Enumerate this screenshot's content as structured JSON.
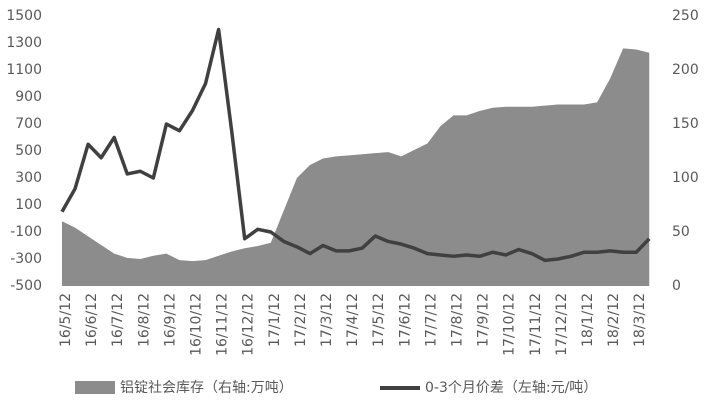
{
  "chart_data": {
    "type": "area-line",
    "categories": [
      "16/5/12",
      null,
      "16/6/12",
      null,
      "16/7/12",
      null,
      "16/8/12",
      null,
      "16/9/12",
      null,
      "16/10/12",
      null,
      "16/11/12",
      null,
      "16/12/12",
      null,
      "17/1/12",
      null,
      "17/2/12",
      null,
      "17/3/12",
      null,
      "17/4/12",
      null,
      "17/5/12",
      null,
      "17/6/12",
      null,
      "17/7/12",
      null,
      "17/8/12",
      null,
      "17/9/12",
      null,
      "17/10/12",
      null,
      "17/11/12",
      null,
      "17/12/12",
      null,
      "18/1/12",
      null,
      "18/2/12",
      null,
      "18/3/12",
      null
    ],
    "series": [
      {
        "name": "铝锭社会库存（右轴:万吨）",
        "color": "#8c8c8c",
        "axis": "y2",
        "kind": "area",
        "values": [
          60,
          54,
          46,
          38,
          30,
          26,
          25,
          28,
          30,
          24,
          23,
          24,
          28,
          32,
          35,
          37,
          40,
          70,
          100,
          112,
          118,
          120,
          121,
          122,
          123,
          124,
          120,
          126,
          132,
          148,
          158,
          158,
          162,
          165,
          166,
          166,
          166,
          167,
          168,
          168,
          168,
          170,
          192,
          220,
          219,
          216
        ]
      },
      {
        "name": "0-3个月价差（左轴:元/吨）",
        "color": "#404040",
        "axis": "y",
        "kind": "line",
        "values": [
          50,
          220,
          550,
          450,
          600,
          330,
          350,
          300,
          700,
          650,
          800,
          1000,
          1400,
          650,
          -150,
          -80,
          -100,
          -170,
          -210,
          -260,
          -200,
          -240,
          -240,
          -220,
          -130,
          -170,
          -190,
          -220,
          -260,
          -270,
          -280,
          -270,
          -280,
          -250,
          -270,
          -230,
          -260,
          -310,
          -300,
          -280,
          -250,
          -250,
          -240,
          -250,
          -250,
          -150
        ]
      }
    ],
    "ylim": [
      -500,
      1500
    ],
    "yticks": [
      -500,
      -300,
      -100,
      100,
      300,
      500,
      700,
      900,
      1100,
      1300,
      1500
    ],
    "y2lim": [
      0,
      250
    ],
    "y2ticks": [
      0,
      50,
      100,
      150,
      200,
      250
    ]
  }
}
